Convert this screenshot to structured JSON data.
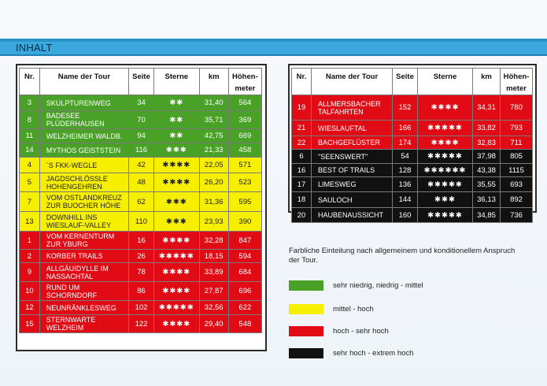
{
  "header": {
    "title": "INHALT"
  },
  "columns": {
    "nr": "Nr.",
    "name": "Name der Tour",
    "seite": "Seite",
    "sterne": "Sterne",
    "km": "km",
    "hoehe1": "Höhen-",
    "hoehe2": "meter"
  },
  "colors": {
    "green": "#4aa128",
    "yellow": "#f7ef00",
    "red": "#e00b14",
    "black": "#111111",
    "header_blue": "#3aa8dd"
  },
  "left_table": [
    {
      "nr": "3",
      "name": "SKULPTURENWEG",
      "seite": "34",
      "sterne": "✱✱",
      "km": "31,40",
      "hm": "564",
      "level": "green"
    },
    {
      "nr": "8",
      "name": "BADESEE PLÜDERHAUSEN",
      "seite": "70",
      "sterne": "✱✱",
      "km": "35,71",
      "hm": "369",
      "level": "green"
    },
    {
      "nr": "11",
      "name": "WELZHEIMER WALDB.",
      "seite": "94",
      "sterne": "✱✱",
      "km": "42,75",
      "hm": "669",
      "level": "green"
    },
    {
      "nr": "14",
      "name": "MYTHOS GEISTSTEIN",
      "seite": "116",
      "sterne": "✱✱✱",
      "km": "21,33",
      "hm": "458",
      "level": "green"
    },
    {
      "nr": "4",
      "name": "´S FKK-WEGLE",
      "seite": "42",
      "sterne": "✱✱✱✱",
      "km": "22,05",
      "hm": "571",
      "level": "yellow"
    },
    {
      "nr": "5",
      "name": "JAGDSCHLÖSSLE HOHENGEHREN",
      "seite": "48",
      "sterne": "✱✱✱✱",
      "km": "26,20",
      "hm": "523",
      "level": "yellow"
    },
    {
      "nr": "7",
      "name": "VOM OSTLANDKREUZ ZUR BUOCHER HÖHE",
      "seite": "62",
      "sterne": "✱✱✱",
      "km": "31,36",
      "hm": "595",
      "level": "yellow"
    },
    {
      "nr": "13",
      "name": "DOWNHILL INS WIESLAUF-VALLEY",
      "seite": "110",
      "sterne": "✱✱✱",
      "km": "23,93",
      "hm": "390",
      "level": "yellow"
    },
    {
      "nr": "1",
      "name": "VOM KERNENTURM ZUR YBURG",
      "seite": "16",
      "sterne": "✱✱✱✱",
      "km": "32,28",
      "hm": "847",
      "level": "red"
    },
    {
      "nr": "2",
      "name": "KORBER TRAILS",
      "seite": "26",
      "sterne": "✱✱✱✱✱",
      "km": "18,15",
      "hm": "594",
      "level": "red"
    },
    {
      "nr": "9",
      "name": "ALLGÄUIDYLLE IM NASSACHTAL",
      "seite": "78",
      "sterne": "✱✱✱✱",
      "km": "33,89",
      "hm": "684",
      "level": "red"
    },
    {
      "nr": "10",
      "name": "RUND UM SCHORNDORF",
      "seite": "86",
      "sterne": "✱✱✱✱",
      "km": "27,87",
      "hm": "696",
      "level": "red"
    },
    {
      "nr": "12",
      "name": "NEUNRÄNKLESWEG",
      "seite": "102",
      "sterne": "✱✱✱✱✱",
      "km": "32,56",
      "hm": "622",
      "level": "red"
    },
    {
      "nr": "15",
      "name": "STERNWARTE WELZHEIM",
      "seite": "122",
      "sterne": "✱✱✱✱",
      "km": "29,40",
      "hm": "548",
      "level": "red"
    }
  ],
  "right_table": [
    {
      "nr": "19",
      "name": "ALLMERSBACHER TALFAHRTEN",
      "seite": "152",
      "sterne": "✱✱✱✱",
      "km": "34,31",
      "hm": "780",
      "level": "red"
    },
    {
      "nr": "21",
      "name": "WIESLAUFTAL",
      "seite": "166",
      "sterne": "✱✱✱✱✱",
      "km": "33,82",
      "hm": "793",
      "level": "red"
    },
    {
      "nr": "22",
      "name": "BACHGEFLÜSTER",
      "seite": "174",
      "sterne": "✱✱✱✱",
      "km": "32,83",
      "hm": "711",
      "level": "red"
    },
    {
      "nr": "6",
      "name": "\"SEENSWERT\"",
      "seite": "54",
      "sterne": "✱✱✱✱✱",
      "km": "37,98",
      "hm": "805",
      "level": "black"
    },
    {
      "nr": "16",
      "name": "BEST OF TRAILS",
      "seite": "128",
      "sterne": "✱✱✱✱✱✱",
      "km": "43,38",
      "hm": "1115",
      "level": "black"
    },
    {
      "nr": "17",
      "name": "LIMESWEG",
      "seite": "136",
      "sterne": "✱✱✱✱✱",
      "km": "35,55",
      "hm": "693",
      "level": "black"
    },
    {
      "nr": "18",
      "name": "SAULOCH",
      "seite": "144",
      "sterne": "✱✱✱",
      "km": "36,13",
      "hm": "892",
      "level": "black"
    },
    {
      "nr": "20",
      "name": "HAUBENAUSSICHT",
      "seite": "160",
      "sterne": "✱✱✱✱✱",
      "km": "34,85",
      "hm": "736",
      "level": "black"
    }
  ],
  "legend": {
    "intro": "Farbliche Einteilung nach allgemeinem und konditionellem Anspruch der Tour.",
    "items": [
      {
        "label": "sehr niedrig, niedrig - mittel",
        "level": "green"
      },
      {
        "label": "mittel - hoch",
        "level": "yellow"
      },
      {
        "label": "hoch - sehr hoch",
        "level": "red"
      },
      {
        "label": "sehr hoch - extrem hoch",
        "level": "black"
      }
    ]
  }
}
